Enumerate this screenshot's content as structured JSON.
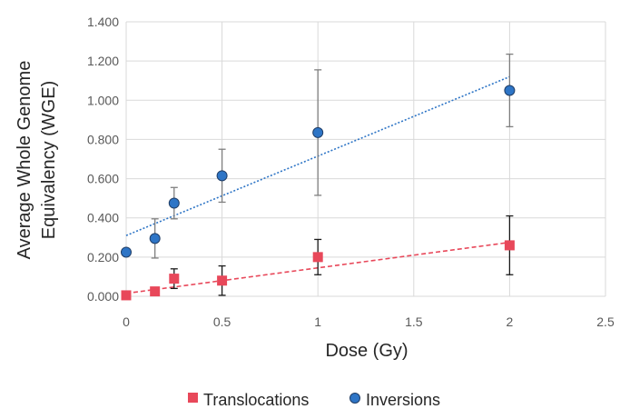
{
  "chart_data": {
    "type": "scatter",
    "xlabel": "Dose (Gy)",
    "ylabel": [
      "Average Whole Genome",
      "Equivalency (WGE)"
    ],
    "xlim": [
      0,
      2.5
    ],
    "ylim": [
      0,
      1.4
    ],
    "x_ticks": [
      "0",
      "0.5",
      "1",
      "1.5",
      "2",
      "2.5"
    ],
    "y_ticks": [
      "0.000",
      "0.200",
      "0.400",
      "0.600",
      "0.800",
      "1.000",
      "1.200",
      "1.400"
    ],
    "grid": true,
    "legend_position": "bottom",
    "series": [
      {
        "name": "Translocations",
        "marker": "square",
        "color": "#e8485a",
        "error_bar_color": "#1a1a1a",
        "points": [
          {
            "x": 0.0,
            "y": 0.005,
            "err": 0.0
          },
          {
            "x": 0.15,
            "y": 0.025,
            "err": 0.0
          },
          {
            "x": 0.25,
            "y": 0.09,
            "err": 0.05
          },
          {
            "x": 0.5,
            "y": 0.08,
            "err": 0.075
          },
          {
            "x": 1.0,
            "y": 0.2,
            "err": 0.09
          },
          {
            "x": 2.0,
            "y": 0.26,
            "err": 0.15
          }
        ],
        "trendline": {
          "style": "dashed",
          "color": "#e8485a",
          "x": [
            0,
            2
          ],
          "y": [
            0.015,
            0.275
          ]
        }
      },
      {
        "name": "Inversions",
        "marker": "circle",
        "color": "#2e75c6",
        "error_bar_color": "#7f7f7f",
        "points": [
          {
            "x": 0.0,
            "y": 0.225,
            "err": 0.0
          },
          {
            "x": 0.15,
            "y": 0.295,
            "err": 0.1
          },
          {
            "x": 0.25,
            "y": 0.475,
            "err": 0.08
          },
          {
            "x": 0.5,
            "y": 0.615,
            "err": 0.135
          },
          {
            "x": 1.0,
            "y": 0.835,
            "err": 0.32
          },
          {
            "x": 2.0,
            "y": 1.05,
            "err": 0.185
          }
        ],
        "trendline": {
          "style": "dotted",
          "color": "#2e75c6",
          "x": [
            0,
            2
          ],
          "y": [
            0.31,
            1.12
          ]
        }
      }
    ]
  }
}
